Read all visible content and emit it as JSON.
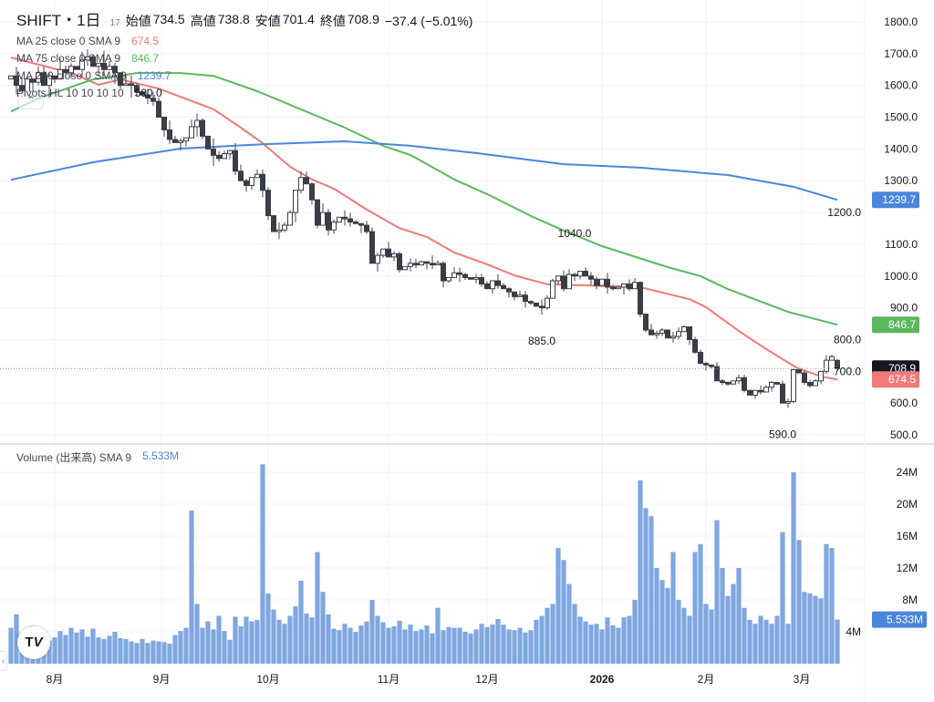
{
  "header": {
    "symbol": "SHIFT・1日",
    "exchange_hint": "17",
    "open_label": "始値",
    "open": "734.5",
    "high_label": "高値",
    "high": "738.8",
    "low_label": "安値",
    "low": "701.4",
    "close_label": "終値",
    "close": "708.9",
    "change": "−37.4 (−5.01%)"
  },
  "indicators": [
    {
      "label": "MA 25 close 0 SMA 9",
      "value": "674.5",
      "color": "#f07a78"
    },
    {
      "label": "MA 75 close 0 SMA 9",
      "value": "846.7",
      "color": "#5cb85c"
    },
    {
      "label": "MA 200 close 0 SMA 9",
      "value": "1239.7",
      "color": "#4a86db"
    },
    {
      "label": "Pivots HL 10 10 10 10",
      "value": "590.0",
      "color": "#131722"
    }
  ],
  "volume_legend": {
    "label": "Volume (出来高) SMA 9",
    "value": "5.533M"
  },
  "collapse_icon": "chevron-up-icon",
  "logo_text": "TV",
  "price_axis": {
    "ticks": [
      "1800.0",
      "1700.0",
      "1600.0",
      "1500.0",
      "1400.0",
      "1300.0",
      "1200.0",
      "1100.0",
      "1000.0",
      "900.0",
      "800.0",
      "700.0",
      "600.0",
      "500.0"
    ]
  },
  "volume_axis": {
    "ticks": [
      "24M",
      "20M",
      "16M",
      "12M",
      "8M",
      "4M"
    ]
  },
  "time_axis": [
    {
      "label": "8月",
      "bar": 8
    },
    {
      "label": "9月",
      "bar": 27.5
    },
    {
      "label": "10月",
      "bar": 47
    },
    {
      "label": "11月",
      "bar": 69
    },
    {
      "label": "12月",
      "bar": 87
    },
    {
      "label": "2026",
      "bar": 108
    },
    {
      "label": "2月",
      "bar": 127
    },
    {
      "label": "3月",
      "bar": 144.5
    }
  ],
  "badges": [
    {
      "value": "1239.7",
      "price": 1239.7,
      "color": "#4a86db"
    },
    {
      "value": "846.7",
      "price": 846.7,
      "color": "#5cb85c"
    },
    {
      "value": "708.9",
      "price": 708.9,
      "color": "#131722"
    },
    {
      "value": "674.5",
      "price": 674.5,
      "color": "#f07a78"
    }
  ],
  "volume_badge": {
    "value": "5.533M",
    "volume": 5.533,
    "color": "#4a86db"
  },
  "pivots": [
    {
      "label": "1040.0",
      "bar": 103,
      "price": 1040,
      "type": "high"
    },
    {
      "label": "885.0",
      "bar": 97,
      "price": 885,
      "type": "low"
    },
    {
      "label": "590.0",
      "bar": 141,
      "price": 590,
      "type": "low"
    }
  ],
  "chart_data": {
    "type": "candlestick",
    "price_range": [
      500,
      1800
    ],
    "volume_range_millions": [
      0,
      24
    ],
    "first_open": 1620,
    "last_candle": {
      "open": 734.5,
      "high": 738.8,
      "low": 701.4,
      "close": 708.9
    },
    "closes": [
      1630,
      1600,
      1580,
      1620,
      1610,
      1640,
      1600,
      1630,
      1620,
      1650,
      1640,
      1660,
      1650,
      1680,
      1690,
      1660,
      1670,
      1650,
      1660,
      1640,
      1600,
      1605,
      1600,
      1580,
      1570,
      1560,
      1550,
      1500,
      1460,
      1430,
      1420,
      1425,
      1435,
      1470,
      1490,
      1440,
      1400,
      1380,
      1370,
      1385,
      1395,
      1330,
      1300,
      1285,
      1310,
      1320,
      1270,
      1190,
      1140,
      1145,
      1160,
      1200,
      1270,
      1310,
      1290,
      1240,
      1160,
      1200,
      1145,
      1170,
      1185,
      1180,
      1170,
      1165,
      1160,
      1140,
      1040,
      1065,
      1085,
      1060,
      1070,
      1020,
      1030,
      1040,
      1035,
      1045,
      1040,
      1035,
      1040,
      985,
      995,
      1010,
      1005,
      995,
      990,
      995,
      975,
      960,
      985,
      970,
      960,
      950,
      935,
      940,
      920,
      915,
      905,
      900,
      930,
      985,
      1000,
      960,
      1005,
      1000,
      1015,
      1000,
      990,
      970,
      990,
      965,
      960,
      965,
      975,
      960,
      980,
      880,
      830,
      815,
      820,
      830,
      805,
      810,
      825,
      840,
      800,
      760,
      725,
      720,
      715,
      670,
      665,
      660,
      670,
      680,
      640,
      625,
      640,
      635,
      650,
      665,
      660,
      600,
      605,
      705,
      695,
      665,
      655,
      670,
      700,
      735,
      746.3,
      708.9
    ],
    "volumes_millions": [
      4.5,
      6.2,
      3.8,
      3.2,
      4.7,
      3.6,
      3.4,
      2.9,
      3.3,
      4.1,
      3.6,
      4.5,
      3.9,
      4.3,
      3.4,
      4.4,
      3.3,
      3.1,
      3.5,
      4.0,
      3.2,
      3.1,
      2.8,
      2.6,
      3.1,
      2.6,
      2.9,
      2.8,
      2.7,
      2.5,
      3.6,
      4.1,
      4.5,
      19.2,
      7.5,
      4.5,
      5.3,
      4.3,
      6.0,
      4.1,
      3.0,
      5.9,
      4.7,
      5.9,
      5.3,
      5.5,
      25.0,
      8.8,
      6.8,
      5.5,
      5.0,
      6.0,
      7.2,
      10.4,
      6.3,
      5.8,
      14.0,
      9.0,
      6.2,
      4.4,
      4.2,
      5.0,
      4.5,
      4.0,
      4.8,
      5.3,
      8.0,
      6.0,
      5.2,
      4.5,
      4.7,
      5.4,
      4.3,
      4.9,
      4.1,
      4.3,
      4.8,
      3.8,
      7.0,
      4.2,
      4.6,
      4.5,
      4.5,
      4.0,
      3.8,
      4.3,
      5.0,
      4.6,
      4.9,
      5.6,
      4.9,
      4.3,
      4.2,
      4.5,
      3.9,
      4.2,
      5.5,
      6.0,
      7.0,
      7.5,
      14.5,
      13.0,
      10.0,
      7.5,
      5.9,
      5.3,
      4.9,
      5.0,
      4.3,
      5.8,
      4.8,
      4.5,
      5.8,
      6.0,
      8.0,
      23.0,
      19.5,
      18.5,
      12.0,
      10.5,
      9.5,
      14.0,
      8.0,
      7.0,
      6.0,
      14.0,
      15.0,
      7.5,
      6.8,
      18.0,
      12.0,
      8.5,
      10.0,
      12.0,
      7.0,
      5.5,
      5.0,
      6.0,
      5.5,
      5.0,
      6.0,
      16.5,
      5.0,
      24.0,
      15.5,
      9.0,
      8.8,
      8.5,
      8.2,
      15.0,
      14.5,
      5.533
    ],
    "ma_lines": [
      {
        "name": "MA 25",
        "color": "#f07a78",
        "points": [
          [
            0,
            1688
          ],
          [
            11,
            1639
          ],
          [
            16,
            1602
          ],
          [
            20,
            1619
          ],
          [
            27,
            1590
          ],
          [
            37,
            1525
          ],
          [
            42,
            1467
          ],
          [
            46,
            1418
          ],
          [
            51,
            1344
          ],
          [
            55,
            1304
          ],
          [
            59,
            1275
          ],
          [
            65,
            1209
          ],
          [
            71,
            1151
          ],
          [
            76,
            1123
          ],
          [
            81,
            1074
          ],
          [
            87,
            1037
          ],
          [
            92,
            1002
          ],
          [
            98,
            974
          ],
          [
            104,
            971
          ],
          [
            115,
            965
          ],
          [
            124,
            927
          ],
          [
            127,
            902
          ],
          [
            133,
            827
          ],
          [
            138,
            770
          ],
          [
            143.5,
            712
          ],
          [
            148,
            684
          ],
          [
            151,
            674.5
          ]
        ]
      },
      {
        "name": "MA 75",
        "color": "#5cb85c",
        "points": [
          [
            0,
            1518
          ],
          [
            5,
            1559
          ],
          [
            15,
            1619
          ],
          [
            23,
            1639
          ],
          [
            31,
            1639
          ],
          [
            37,
            1630
          ],
          [
            45,
            1582
          ],
          [
            51,
            1539
          ],
          [
            61,
            1467
          ],
          [
            68,
            1410
          ],
          [
            73,
            1381
          ],
          [
            81,
            1304
          ],
          [
            87,
            1258
          ],
          [
            95,
            1189
          ],
          [
            101,
            1143
          ],
          [
            108,
            1094
          ],
          [
            120,
            1028
          ],
          [
            126,
            1000
          ],
          [
            131,
            959
          ],
          [
            142,
            887
          ],
          [
            151,
            846.7
          ]
        ]
      },
      {
        "name": "MA 200",
        "color": "#4a86db",
        "points": [
          [
            0,
            1303
          ],
          [
            15,
            1358
          ],
          [
            31,
            1401
          ],
          [
            46,
            1415
          ],
          [
            61,
            1424
          ],
          [
            73,
            1410
          ],
          [
            85,
            1387
          ],
          [
            101,
            1352
          ],
          [
            115,
            1341
          ],
          [
            131,
            1318
          ],
          [
            143,
            1281
          ],
          [
            151,
            1239.7
          ]
        ]
      }
    ]
  }
}
